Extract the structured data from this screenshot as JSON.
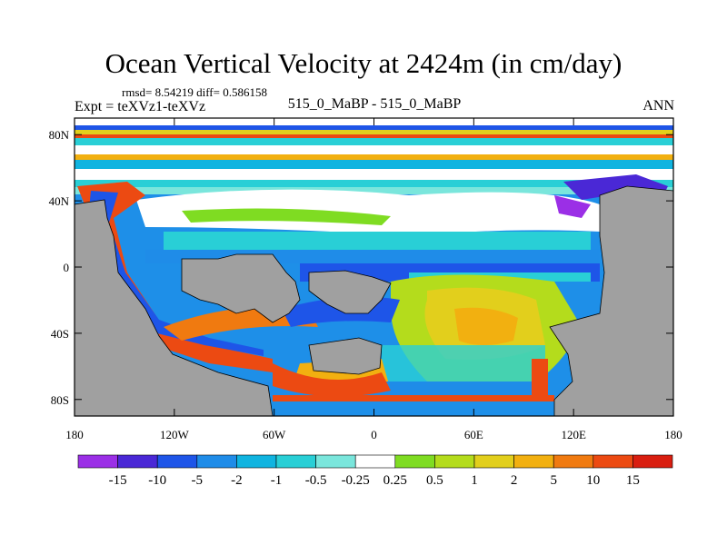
{
  "chart_data": {
    "type": "heatmap",
    "title": "Ocean Vertical Velocity at 2424m (in cm/day)",
    "stats_line": "rmsd= 8.54219 diff= 0.586158",
    "experiment_label": "Expt = teXVz1-teXVz",
    "case_label": "515_0_MaBP - 515_0_MaBP",
    "season_label": "ANN",
    "x_ticks": [
      "180",
      "120W",
      "60W",
      "0",
      "60E",
      "120E",
      "180"
    ],
    "y_ticks": [
      "80N",
      "40N",
      "0",
      "40S",
      "80S"
    ],
    "xlim": [
      -180,
      180
    ],
    "ylim": [
      -90,
      90
    ],
    "land_color": "#a0a0a0",
    "colorbar": {
      "labels": [
        "-15",
        "-10",
        "-5",
        "-2",
        "-1",
        "-0.5",
        "-0.25",
        "0.25",
        "0.5",
        "1",
        "2",
        "5",
        "10",
        "15"
      ],
      "colors": [
        "#9b2fe6",
        "#4a28d6",
        "#1e55e8",
        "#1f8ce8",
        "#10b4e0",
        "#29cfd6",
        "#7ae6dc",
        "#ffffff",
        "#7fdc22",
        "#b4dc1c",
        "#e2cf1c",
        "#f2b010",
        "#f07a10",
        "#ec4a12",
        "#d91e10"
      ]
    }
  }
}
